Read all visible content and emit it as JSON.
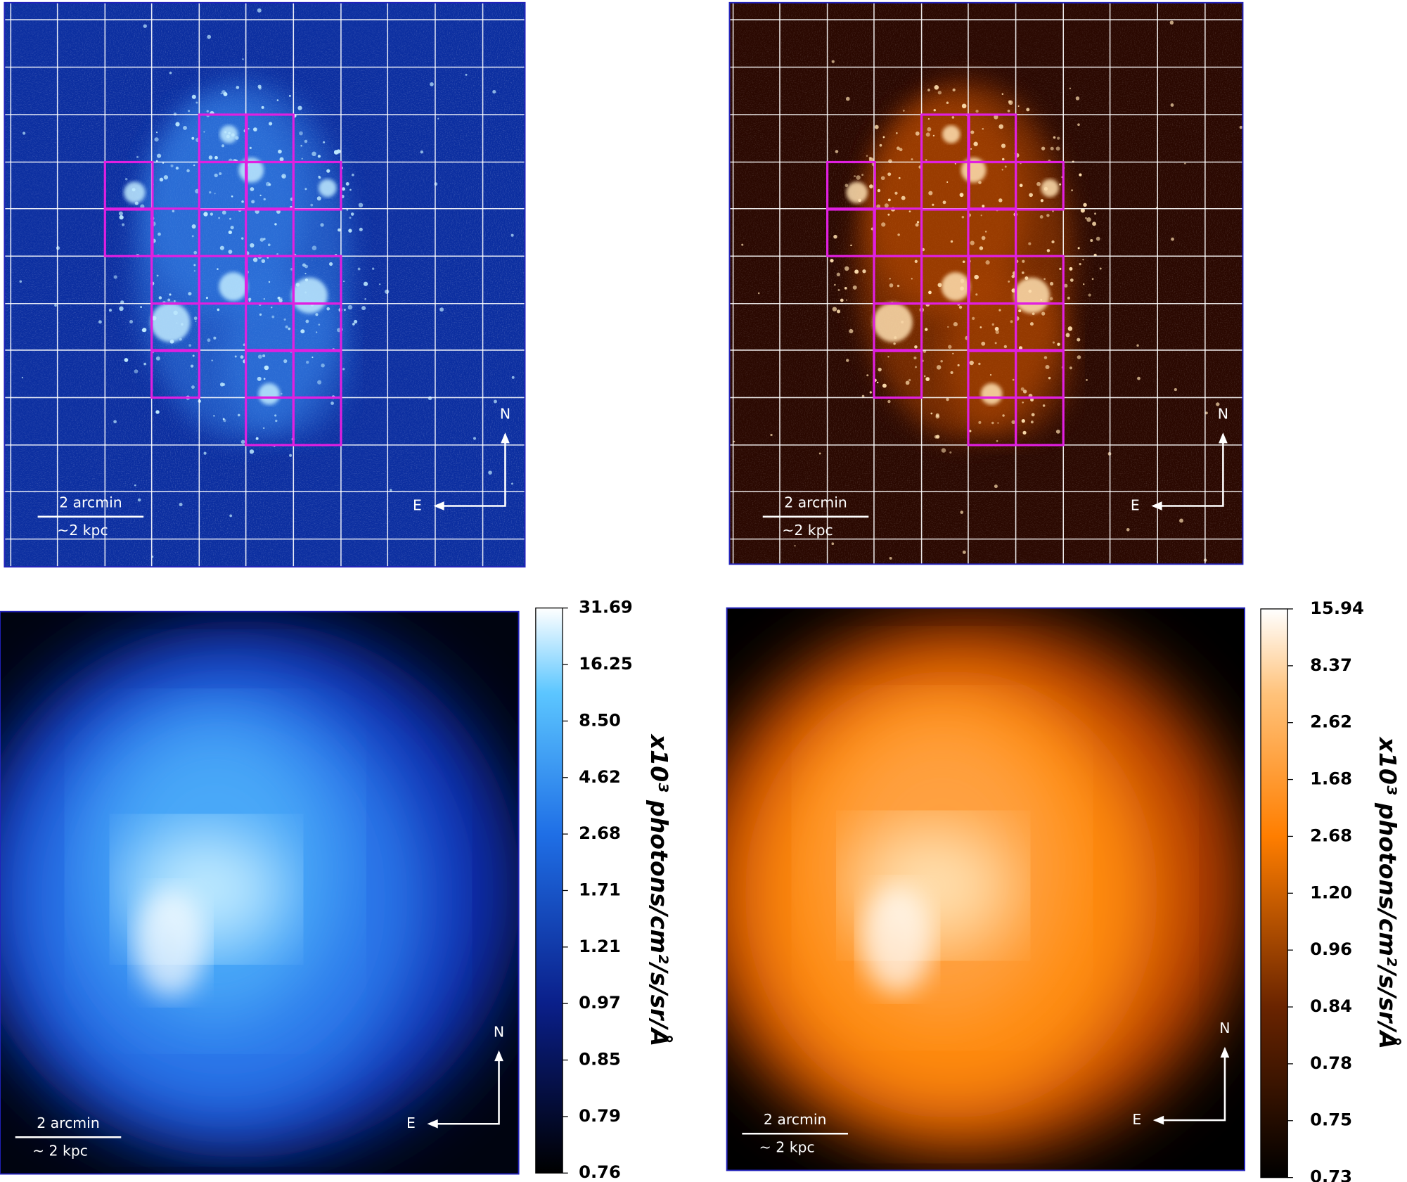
{
  "panels": [
    {
      "scale_bar": {
        "size": "2 arcmin",
        "distance": "~2 kpc"
      },
      "compass": {
        "north": "N",
        "east": "E"
      }
    },
    {
      "scale_bar": {
        "size": "2 arcmin",
        "distance": "~2 kpc"
      },
      "compass": {
        "north": "N",
        "east": "E"
      }
    },
    {
      "scale_bar": {
        "size": "2 arcmin",
        "distance": "~ 2 kpc"
      },
      "compass": {
        "north": "N",
        "east": "E"
      }
    },
    {
      "scale_bar": {
        "size": "2 arcmin",
        "distance": "~ 2 kpc"
      },
      "compass": {
        "north": "N",
        "east": "E"
      }
    }
  ],
  "colorbars": [
    {
      "ticks": [
        "31.69",
        "16.25",
        "8.50",
        "4.62",
        "2.68",
        "1.71",
        "1.21",
        "0.97",
        "0.85",
        "0.79",
        "0.76"
      ],
      "label": "x10³ photons/cm²/s/sr/Å"
    },
    {
      "ticks": [
        "15.94",
        "8.37",
        "2.62",
        "1.68",
        "2.68",
        "1.20",
        "0.96",
        "0.84",
        "0.78",
        "0.75",
        "0.73"
      ],
      "label": "x10³ photons/cm²/s/sr/Å"
    }
  ]
}
